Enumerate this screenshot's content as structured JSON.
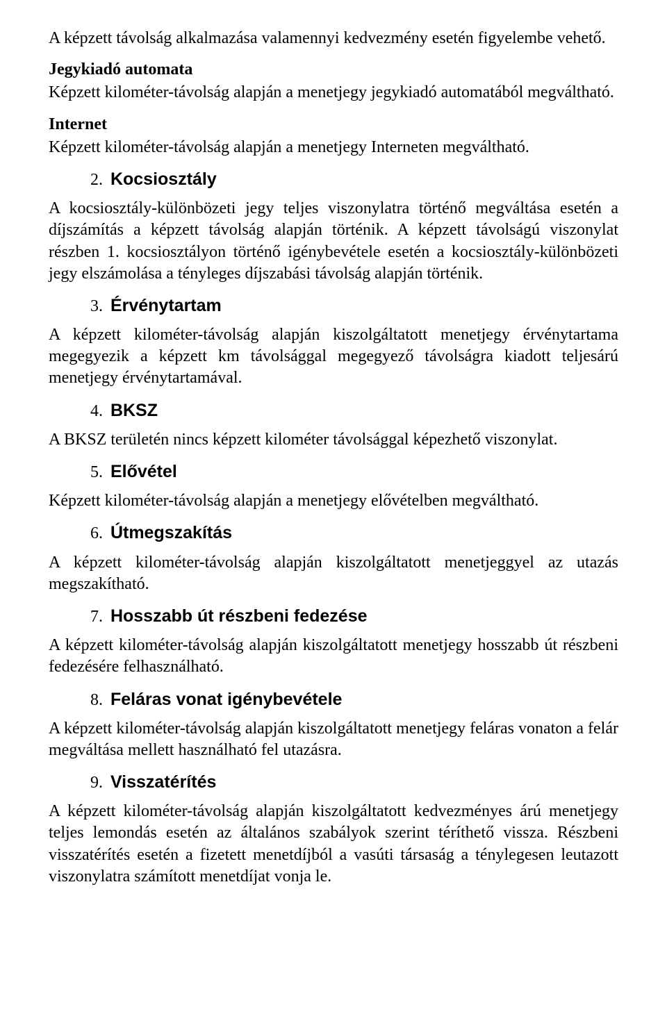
{
  "p_intro": "A képzett távolság alkalmazása valamennyi kedvezmény esetén figyelembe vehető.",
  "h_jegykiado": "Jegykiadó automata",
  "p_jegykiado": "Képzett kilométer-távolság alapján a menetjegy jegykiadó automatából megváltható.",
  "h_internet": "Internet",
  "p_internet": "Képzett kilométer-távolság alapján a menetjegy Interneten megváltható.",
  "sections": {
    "s2": {
      "num": "2.",
      "title": "Kocsiosztály",
      "body": "A kocsiosztály-különbözeti jegy teljes viszonylatra történő megváltása esetén a díjszámítás a képzett távolság alapján történik. A képzett távolságú viszonylat részben 1. kocsiosztályon történő igénybevétele esetén a kocsiosztály-különbözeti jegy elszámolása a tényleges díjszabási távolság alapján történik."
    },
    "s3": {
      "num": "3.",
      "title": "Érvénytartam",
      "body": "A képzett kilométer-távolság alapján kiszolgáltatott menetjegy érvénytartama megegyezik a képzett km távolsággal megegyező távolságra kiadott teljesárú menetjegy érvénytartamával."
    },
    "s4": {
      "num": "4.",
      "title": "BKSZ",
      "body": "A BKSZ területén nincs képzett kilométer távolsággal képezhető viszonylat."
    },
    "s5": {
      "num": "5.",
      "title": "Elővétel",
      "body": "Képzett kilométer-távolság alapján a menetjegy elővételben megváltható."
    },
    "s6": {
      "num": "6.",
      "title": "Útmegszakítás",
      "body": "A képzett kilométer-távolság alapján kiszolgáltatott menetjeggyel az utazás megszakítható."
    },
    "s7": {
      "num": "7.",
      "title": "Hosszabb út részbeni fedezése",
      "body": "A képzett kilométer-távolság alapján kiszolgáltatott menetjegy hosszabb út részbeni fedezésére felhasználható."
    },
    "s8": {
      "num": "8.",
      "title": "Feláras vonat igénybevétele",
      "body": "A képzett kilométer-távolság alapján kiszolgáltatott menetjegy feláras vonaton a felár megváltása mellett használható fel utazásra."
    },
    "s9": {
      "num": "9.",
      "title": "Visszatérítés",
      "body": "A képzett kilométer-távolság alapján kiszolgáltatott kedvezményes árú menetjegy teljes lemondás esetén az általános szabályok szerint téríthető vissza. Részbeni visszatérítés esetén a fizetett menetdíjból a vasúti társaság a ténylegesen leutazott viszonylatra számított menetdíjat vonja le."
    }
  }
}
